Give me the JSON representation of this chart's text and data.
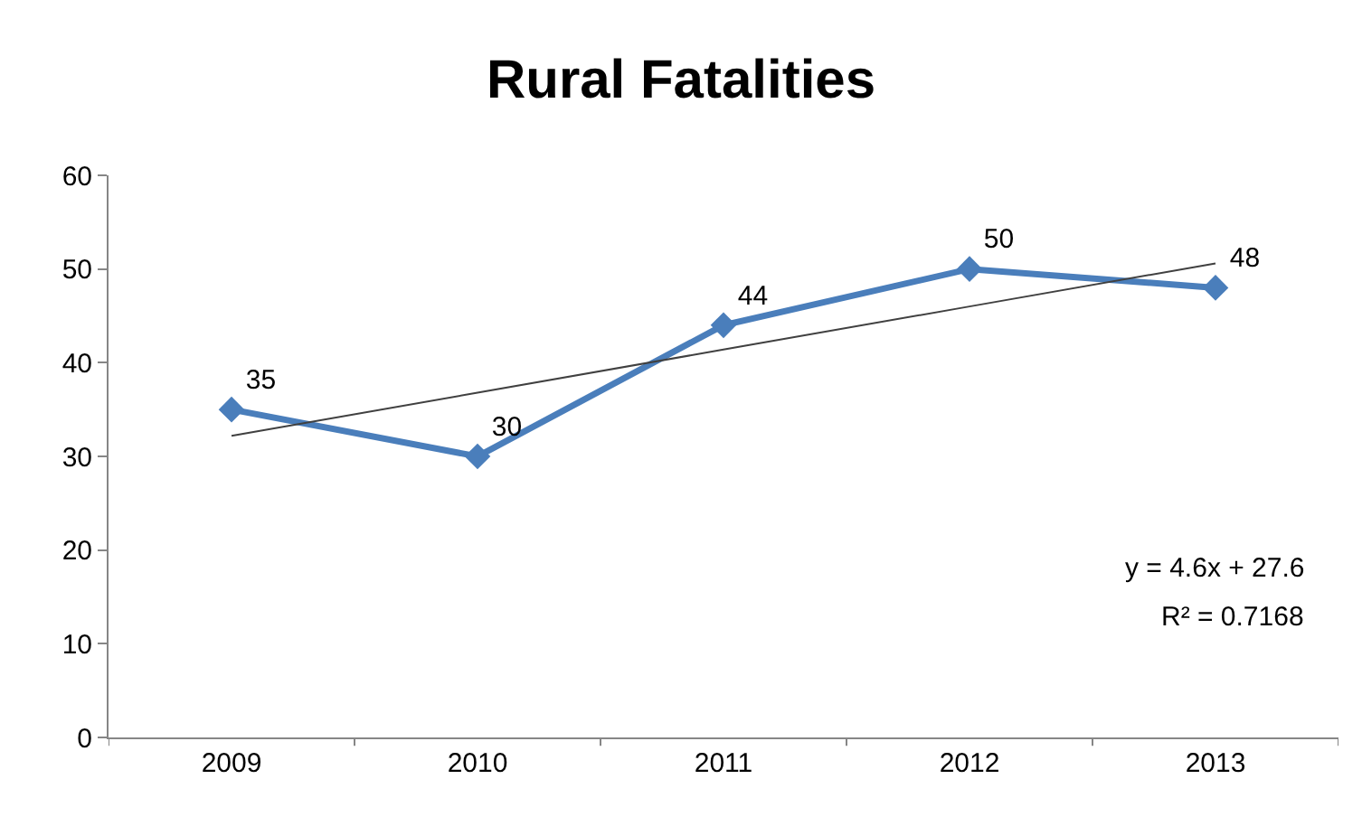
{
  "chart_data": {
    "type": "line",
    "title": "Rural Fatalities",
    "categories": [
      "2009",
      "2010",
      "2011",
      "2012",
      "2013"
    ],
    "series": [
      {
        "color": "#4a7ebb",
        "values": [
          35,
          30,
          44,
          50,
          48
        ],
        "marker": "diamond",
        "data_labels": true
      },
      {
        "color": "#404040",
        "values": [
          32.2,
          36.8,
          41.4,
          46,
          50.6
        ],
        "marker": "none"
      }
    ],
    "ylim": [
      0,
      60
    ],
    "yticks": [
      0,
      10,
      20,
      30,
      40,
      50,
      60
    ],
    "legend": false,
    "annotations": [
      "y = 4.6x + 27.6",
      "R² = 0.7168"
    ]
  }
}
